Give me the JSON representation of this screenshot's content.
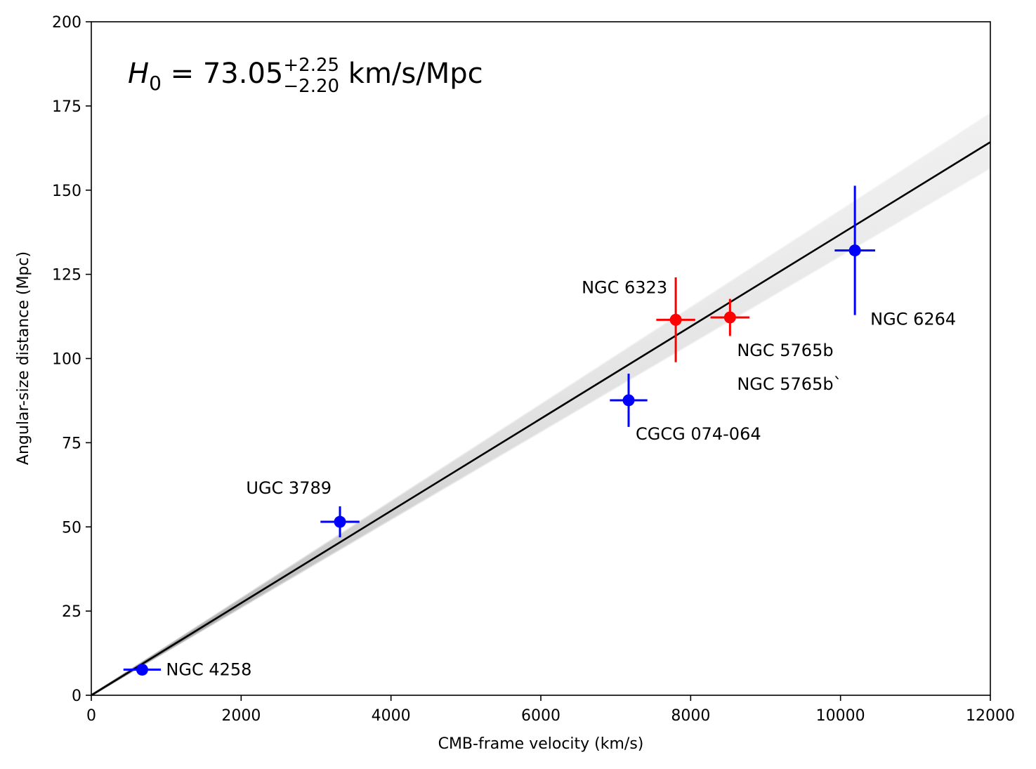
{
  "chart_data": {
    "type": "scatter",
    "xlabel": "CMB-frame velocity (km/s)",
    "ylabel": "Angular-size distance (Mpc)",
    "xlim": [
      0,
      12000
    ],
    "ylim": [
      0,
      200
    ],
    "xticks": [
      0,
      2000,
      4000,
      6000,
      8000,
      10000,
      12000
    ],
    "yticks": [
      0,
      25,
      50,
      75,
      100,
      125,
      150,
      175,
      200
    ],
    "grid": false,
    "annotation": {
      "symbol": "H",
      "subscript": "0",
      "equals": " = ",
      "value": "73.05",
      "err_plus": "+2.25",
      "err_minus": "−2.20",
      "unit": " km/s/Mpc"
    },
    "fit": {
      "slope_inverse_H0": 73.05,
      "color": "#000000",
      "band_color": "#888888"
    },
    "series": [
      {
        "name": "",
        "color": "#0000ff",
        "points": [
          {
            "label": "NGC 4258",
            "x": 679,
            "y": 7.6,
            "xerr": 250,
            "yerr": 0.2
          },
          {
            "label": "UGC 3789",
            "x": 3319,
            "y": 51.5,
            "xerr": 260,
            "yerr": 4.6
          },
          {
            "label": "CGCG 074-064",
            "x": 7172,
            "y": 87.6,
            "xerr": 250,
            "yerr": 7.9
          },
          {
            "label": "NGC 6264",
            "x": 10192,
            "y": 132.1,
            "xerr": 270,
            "yerr": 19.2
          }
        ]
      },
      {
        "name": "",
        "color": "#ff0000",
        "points": [
          {
            "label": "NGC 6323",
            "x": 7801,
            "y": 111.5,
            "xerr": 260,
            "yerr": 12.6
          },
          {
            "label": "NGC 5765b",
            "x": 8525,
            "y": 112.2,
            "xerr": 260,
            "yerr": 5.5
          }
        ]
      }
    ],
    "extra_labels": [
      "NGC 5765b`"
    ]
  }
}
